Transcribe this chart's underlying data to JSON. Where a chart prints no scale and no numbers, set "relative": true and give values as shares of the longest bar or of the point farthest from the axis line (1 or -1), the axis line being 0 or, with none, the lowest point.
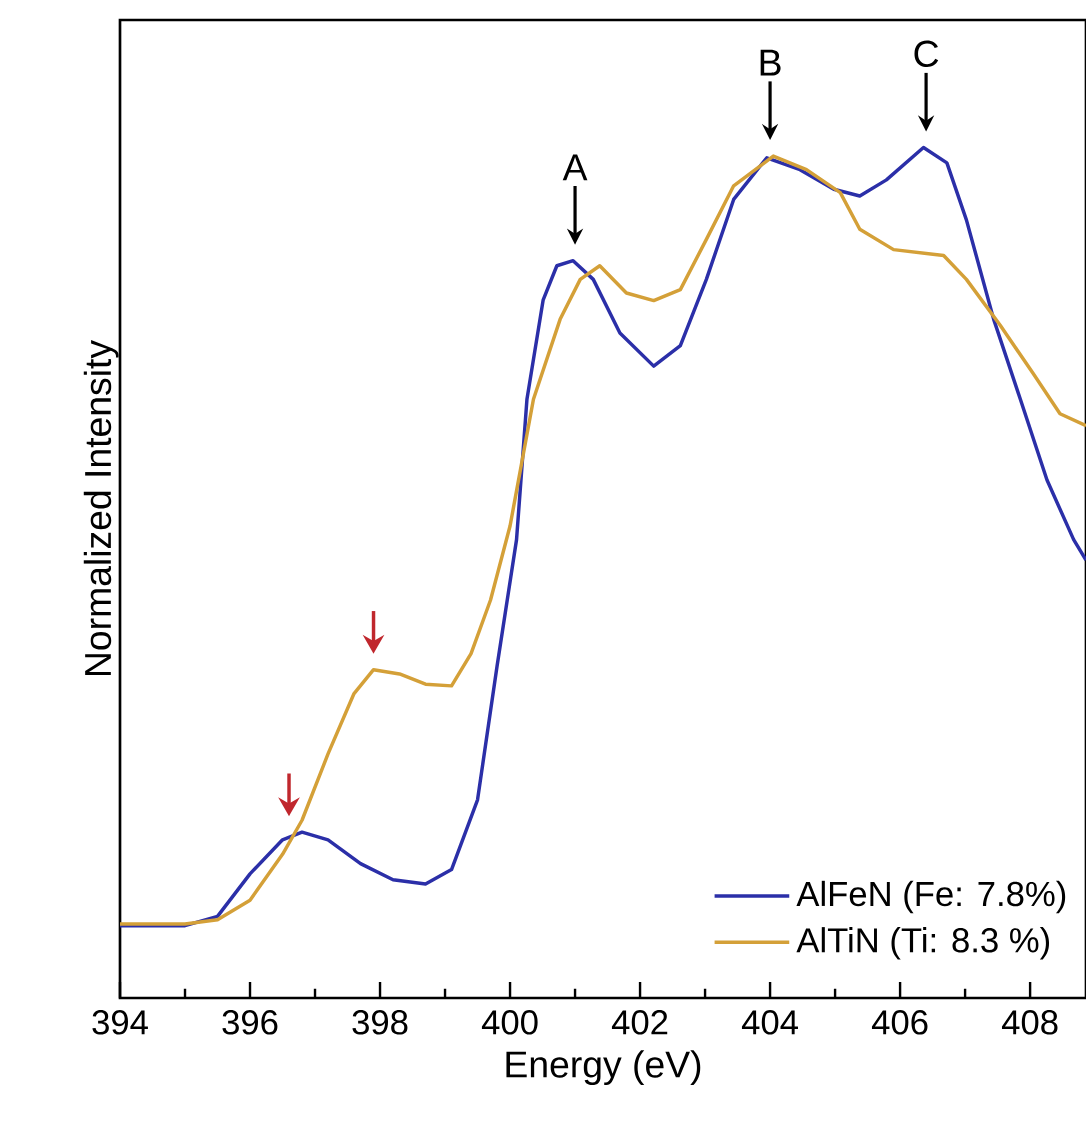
{
  "chart_data": {
    "type": "line",
    "relative": true,
    "xlabel": "Energy (eV)",
    "ylabel": "Normalized Intensity",
    "xlim": [
      394,
      408.86
    ],
    "xticks": [
      394,
      {
        "value": 395,
        "label": null
      },
      396,
      {
        "value": 397,
        "label": null
      },
      398,
      {
        "value": 399,
        "label": null
      },
      400,
      {
        "value": 401,
        "label": null
      },
      402,
      {
        "value": 403,
        "label": null
      },
      404,
      {
        "value": 405,
        "label": null
      },
      406,
      {
        "value": 407,
        "label": null
      },
      408
    ],
    "legend": "bottom right",
    "annotations": [
      {
        "text": "A",
        "x": 401.0,
        "y": 0.867
      },
      {
        "text": "B",
        "x": 404.0,
        "y": 0.99
      },
      {
        "text": "C",
        "x": 406.4,
        "y": 1.0
      }
    ],
    "series": [
      {
        "name": "AlFeN (Fe: 7.8%)",
        "color": "#2b2fa8",
        "x": [
          394.0,
          395.0,
          395.5,
          396.0,
          396.5,
          396.8,
          397.2,
          397.7,
          398.2,
          398.7,
          399.1,
          399.5,
          399.8,
          400.1,
          400.26,
          400.51,
          400.72,
          400.97,
          401.28,
          401.69,
          402.21,
          402.62,
          403.02,
          403.44,
          403.95,
          404.46,
          404.98,
          405.38,
          405.79,
          406.36,
          406.72,
          407.02,
          407.44,
          407.85,
          408.26,
          408.67,
          408.86
        ],
        "values": [
          0.085,
          0.085,
          0.096,
          0.146,
          0.186,
          0.195,
          0.186,
          0.158,
          0.139,
          0.134,
          0.151,
          0.233,
          0.39,
          0.539,
          0.704,
          0.821,
          0.861,
          0.867,
          0.845,
          0.782,
          0.743,
          0.767,
          0.845,
          0.939,
          0.988,
          0.974,
          0.951,
          0.943,
          0.962,
          1.0,
          0.982,
          0.915,
          0.798,
          0.704,
          0.609,
          0.539,
          0.515
        ]
      },
      {
        "name": "AlTiN (Ti: 8.3 %)",
        "color": "#d4a038",
        "x": [
          394.0,
          395.0,
          395.5,
          396.0,
          396.5,
          396.8,
          397.2,
          397.6,
          397.9,
          398.3,
          398.7,
          399.1,
          399.4,
          399.7,
          400.0,
          400.36,
          400.77,
          401.08,
          401.38,
          401.79,
          402.21,
          402.62,
          403.02,
          403.44,
          404.05,
          404.56,
          405.08,
          405.38,
          405.9,
          406.67,
          407.02,
          407.54,
          408.05,
          408.46,
          408.86
        ],
        "values": [
          0.087,
          0.087,
          0.092,
          0.115,
          0.169,
          0.209,
          0.287,
          0.358,
          0.386,
          0.381,
          0.369,
          0.367,
          0.405,
          0.468,
          0.555,
          0.704,
          0.798,
          0.845,
          0.861,
          0.829,
          0.82,
          0.833,
          0.892,
          0.955,
          0.99,
          0.974,
          0.947,
          0.904,
          0.88,
          0.873,
          0.845,
          0.791,
          0.734,
          0.687,
          0.673
        ]
      }
    ]
  }
}
